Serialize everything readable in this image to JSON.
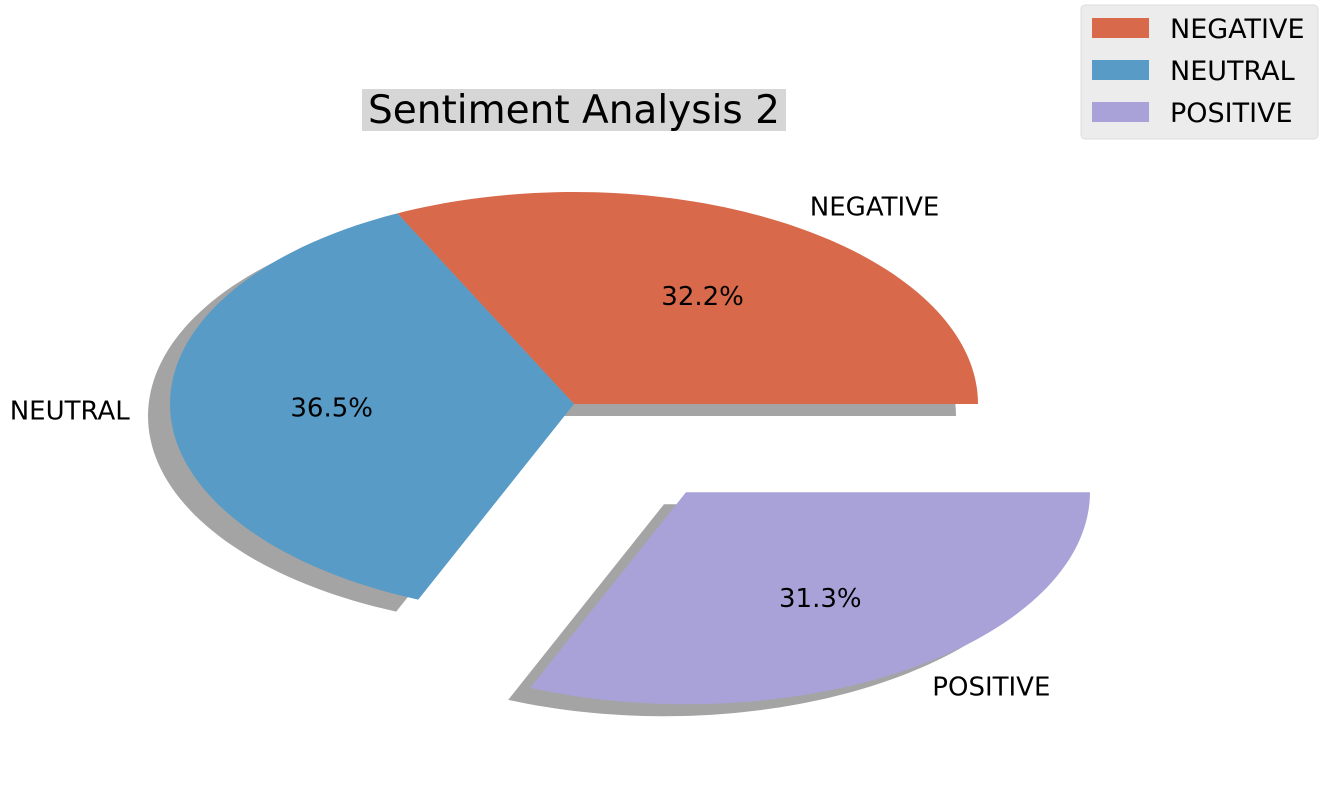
{
  "chart_data": {
    "type": "pie",
    "title": "Sentiment Analysis 2",
    "categories": [
      "NEGATIVE",
      "NEUTRAL",
      "POSITIVE"
    ],
    "values": [
      32.2,
      36.5,
      31.3
    ],
    "value_labels": [
      "32.2%",
      "36.5%",
      "31.3%"
    ],
    "colors": [
      "#d9694b",
      "#579bc6",
      "#a8a2d8"
    ],
    "exploded": [
      false,
      false,
      true
    ],
    "shadow": true,
    "start_angle_degrees": 0,
    "legend": {
      "placement": "top-right",
      "entries": [
        "NEGATIVE",
        "NEUTRAL",
        "POSITIVE"
      ]
    },
    "title_background": "#d6d6d6"
  }
}
